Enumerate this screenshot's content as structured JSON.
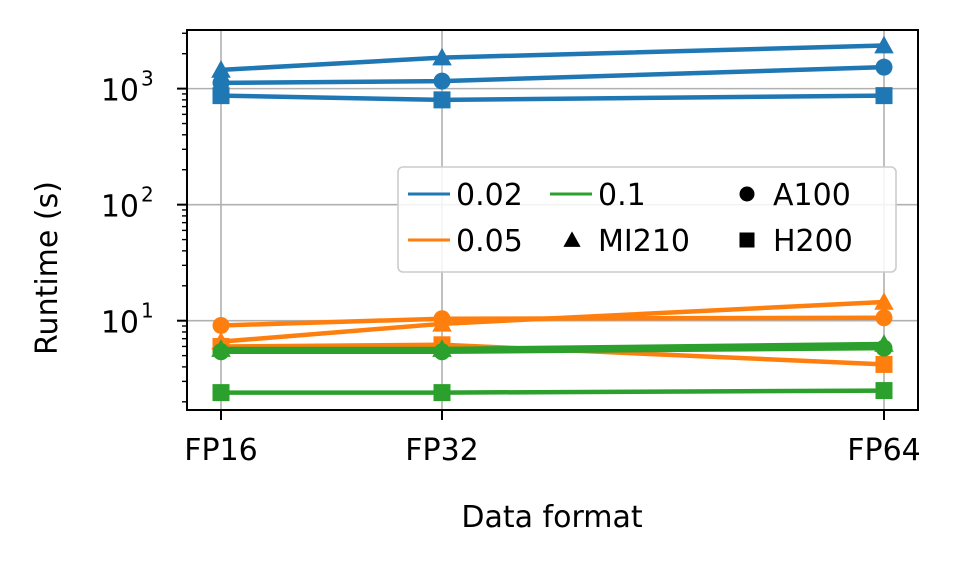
{
  "chart_data": {
    "type": "line",
    "xlabel": "Data format",
    "ylabel": "Runtime (s)",
    "yscale": "log",
    "ylim": [
      1.7,
      3200
    ],
    "grid": true,
    "categories": [
      "FP16",
      "FP32",
      "FP64"
    ],
    "category_positions": [
      16,
      32,
      64
    ],
    "y_ticks": [
      {
        "base": "10",
        "exp": "1",
        "value": 10
      },
      {
        "base": "10",
        "exp": "2",
        "value": 100
      },
      {
        "base": "10",
        "exp": "3",
        "value": 1000
      }
    ],
    "colors": {
      "0.02": "#1f77b4",
      "0.05": "#ff7f0e",
      "0.1": "#2ca02c"
    },
    "series": [
      {
        "name": "0.02 MI210",
        "threshold": "0.02",
        "gpu": "MI210",
        "marker": "triangle",
        "values": [
          1450,
          1850,
          2350
        ]
      },
      {
        "name": "0.02 A100",
        "threshold": "0.02",
        "gpu": "A100",
        "marker": "circle",
        "values": [
          1120,
          1160,
          1530
        ]
      },
      {
        "name": "0.02 H200",
        "threshold": "0.02",
        "gpu": "H200",
        "marker": "square",
        "values": [
          870,
          800,
          870
        ]
      },
      {
        "name": "0.05 MI210",
        "threshold": "0.05",
        "gpu": "MI210",
        "marker": "triangle",
        "values": [
          6.6,
          9.4,
          14.5
        ]
      },
      {
        "name": "0.05 A100",
        "threshold": "0.05",
        "gpu": "A100",
        "marker": "circle",
        "values": [
          9.1,
          10.4,
          10.6
        ]
      },
      {
        "name": "0.05 H200",
        "threshold": "0.05",
        "gpu": "H200",
        "marker": "square",
        "values": [
          6.0,
          6.2,
          4.2
        ]
      },
      {
        "name": "0.1 MI210",
        "threshold": "0.1",
        "gpu": "MI210",
        "marker": "triangle",
        "values": [
          5.7,
          5.7,
          6.3
        ]
      },
      {
        "name": "0.1 A100",
        "threshold": "0.1",
        "gpu": "A100",
        "marker": "circle",
        "values": [
          5.4,
          5.4,
          5.8
        ]
      },
      {
        "name": "0.1 H200",
        "threshold": "0.1",
        "gpu": "H200",
        "marker": "square",
        "values": [
          2.4,
          2.4,
          2.5
        ]
      }
    ],
    "legend": {
      "placement": "center-right",
      "lines": [
        {
          "label": "0.02",
          "color": "#1f77b4"
        },
        {
          "label": "0.05",
          "color": "#ff7f0e"
        },
        {
          "label": "0.1",
          "color": "#2ca02c"
        }
      ],
      "markers": [
        {
          "label": "MI210",
          "marker": "triangle"
        },
        {
          "label": "A100",
          "marker": "circle"
        },
        {
          "label": "H200",
          "marker": "square"
        }
      ]
    }
  }
}
